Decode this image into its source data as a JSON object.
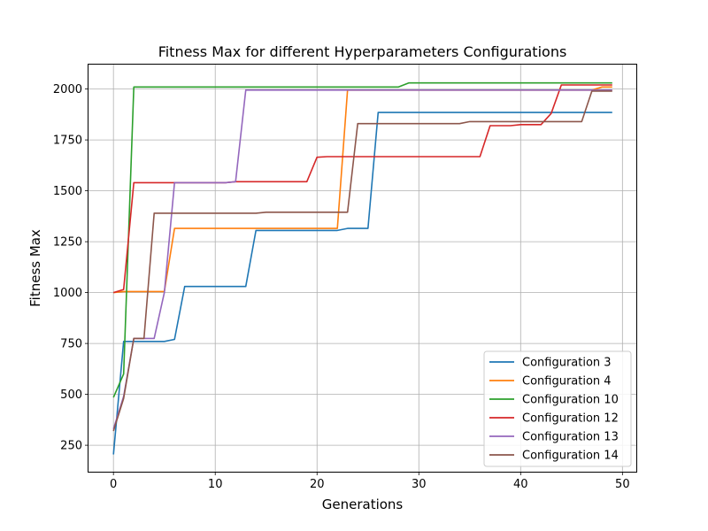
{
  "chart_data": {
    "type": "line",
    "title": "Fitness Max for different Hyperparameters Configurations",
    "xlabel": "Generations",
    "ylabel": "Fitness Max",
    "xlim": [
      -2.45,
      51.45
    ],
    "ylim": [
      120,
      2120
    ],
    "xticks": [
      0,
      10,
      20,
      30,
      40,
      50
    ],
    "yticks": [
      250,
      500,
      750,
      1000,
      1250,
      1500,
      1750,
      2000
    ],
    "grid": true,
    "legend_position": "lower-right",
    "x": [
      0,
      1,
      2,
      3,
      4,
      5,
      6,
      7,
      8,
      9,
      10,
      11,
      12,
      13,
      14,
      15,
      16,
      17,
      18,
      19,
      20,
      21,
      22,
      23,
      24,
      25,
      26,
      27,
      28,
      29,
      30,
      31,
      32,
      33,
      34,
      35,
      36,
      37,
      38,
      39,
      40,
      41,
      42,
      43,
      44,
      45,
      46,
      47,
      48,
      49
    ],
    "series": [
      {
        "name": "Configuration 3",
        "color": "#1f77b4",
        "values": [
          205,
          760,
          760,
          760,
          760,
          760,
          770,
          1030,
          1030,
          1030,
          1030,
          1030,
          1030,
          1030,
          1305,
          1305,
          1305,
          1305,
          1305,
          1305,
          1305,
          1305,
          1305,
          1315,
          1315,
          1315,
          1885,
          1885,
          1885,
          1885,
          1885,
          1885,
          1885,
          1885,
          1885,
          1885,
          1885,
          1885,
          1885,
          1885,
          1885,
          1885,
          1885,
          1885,
          1885,
          1885,
          1885,
          1885,
          1885,
          1885
        ]
      },
      {
        "name": "Configuration 4",
        "color": "#ff7f0e",
        "values": [
          1000,
          1005,
          1005,
          1005,
          1005,
          1005,
          1315,
          1315,
          1315,
          1315,
          1315,
          1315,
          1315,
          1315,
          1315,
          1315,
          1315,
          1315,
          1315,
          1315,
          1315,
          1315,
          1315,
          1995,
          1995,
          1995,
          1995,
          1995,
          1995,
          1995,
          1995,
          1995,
          1995,
          1995,
          1995,
          1995,
          1995,
          1995,
          1995,
          1995,
          1995,
          1995,
          1995,
          1995,
          1995,
          1995,
          1995,
          1995,
          2010,
          2010
        ]
      },
      {
        "name": "Configuration 10",
        "color": "#2ca02c",
        "values": [
          485,
          600,
          2010,
          2010,
          2010,
          2010,
          2010,
          2010,
          2010,
          2010,
          2010,
          2010,
          2010,
          2010,
          2010,
          2010,
          2010,
          2010,
          2010,
          2010,
          2010,
          2010,
          2010,
          2010,
          2010,
          2010,
          2010,
          2010,
          2010,
          2030,
          2030,
          2030,
          2030,
          2030,
          2030,
          2030,
          2030,
          2030,
          2030,
          2030,
          2030,
          2030,
          2030,
          2030,
          2030,
          2030,
          2030,
          2030,
          2030,
          2030
        ]
      },
      {
        "name": "Configuration 12",
        "color": "#d62728",
        "values": [
          1000,
          1015,
          1540,
          1540,
          1540,
          1540,
          1540,
          1540,
          1540,
          1540,
          1540,
          1540,
          1545,
          1545,
          1545,
          1545,
          1545,
          1545,
          1545,
          1545,
          1665,
          1668,
          1668,
          1668,
          1668,
          1668,
          1668,
          1668,
          1668,
          1668,
          1668,
          1668,
          1668,
          1668,
          1668,
          1668,
          1668,
          1820,
          1820,
          1820,
          1825,
          1825,
          1825,
          1880,
          2020,
          2020,
          2020,
          2020,
          2020,
          2020
        ]
      },
      {
        "name": "Configuration 13",
        "color": "#9467bd",
        "values": [
          330,
          490,
          775,
          775,
          775,
          1000,
          1540,
          1540,
          1540,
          1540,
          1540,
          1540,
          1545,
          1995,
          1995,
          1995,
          1995,
          1995,
          1995,
          1995,
          1995,
          1995,
          1995,
          1995,
          1995,
          1995,
          1995,
          1995,
          1995,
          1995,
          1995,
          1995,
          1995,
          1995,
          1995,
          1995,
          1995,
          1995,
          1995,
          1995,
          1995,
          1995,
          1995,
          1995,
          1995,
          1995,
          1995,
          1995,
          1995,
          1995
        ]
      },
      {
        "name": "Configuration 14",
        "color": "#8c564b",
        "values": [
          320,
          480,
          775,
          775,
          1390,
          1390,
          1390,
          1390,
          1390,
          1390,
          1390,
          1390,
          1390,
          1390,
          1390,
          1395,
          1395,
          1395,
          1395,
          1395,
          1395,
          1395,
          1395,
          1395,
          1830,
          1830,
          1830,
          1830,
          1830,
          1830,
          1830,
          1830,
          1830,
          1830,
          1830,
          1840,
          1840,
          1840,
          1840,
          1840,
          1840,
          1840,
          1840,
          1840,
          1840,
          1840,
          1840,
          1990,
          1990,
          1990
        ]
      }
    ]
  }
}
